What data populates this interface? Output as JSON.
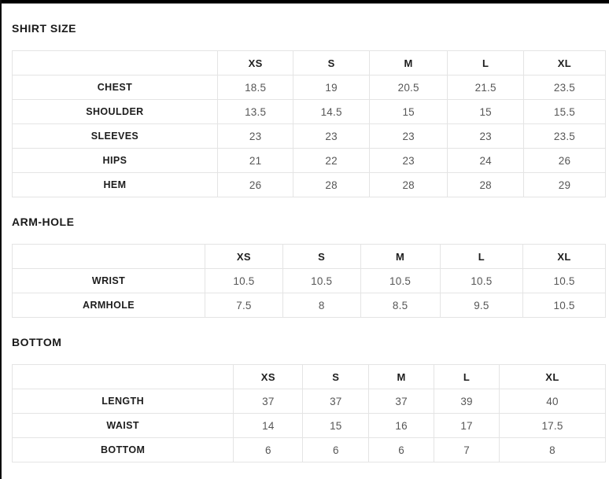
{
  "colors": {
    "frame": "#000000",
    "title_text": "#1a1a1a",
    "header_text": "#1d1d1d",
    "value_text": "#575757",
    "table_border": "#e4e4e4",
    "background": "#ffffff"
  },
  "sections": [
    {
      "title": "SHIRT SIZE",
      "columns": [
        "",
        "XS",
        "S",
        "M",
        "L",
        "XL"
      ],
      "rows": [
        {
          "label": "CHEST",
          "values": [
            "18.5",
            "19",
            "20.5",
            "21.5",
            "23.5"
          ]
        },
        {
          "label": "SHOULDER",
          "values": [
            "13.5",
            "14.5",
            "15",
            "15",
            "15.5"
          ]
        },
        {
          "label": "SLEEVES",
          "values": [
            "23",
            "23",
            "23",
            "23",
            "23.5"
          ]
        },
        {
          "label": "HIPS",
          "values": [
            "21",
            "22",
            "23",
            "24",
            "26"
          ]
        },
        {
          "label": "HEM",
          "values": [
            "26",
            "28",
            "28",
            "28",
            "29"
          ]
        }
      ]
    },
    {
      "title": "ARM-HOLE",
      "columns": [
        "",
        "XS",
        "S",
        "M",
        "L",
        "XL"
      ],
      "rows": [
        {
          "label": "WRIST",
          "values": [
            "10.5",
            "10.5",
            "10.5",
            "10.5",
            "10.5"
          ]
        },
        {
          "label": "ARMHOLE",
          "values": [
            "7.5",
            "8",
            "8.5",
            "9.5",
            "10.5"
          ]
        }
      ]
    },
    {
      "title": "BOTTOM",
      "columns": [
        "",
        "XS",
        "S",
        "M",
        "L",
        "XL"
      ],
      "rows": [
        {
          "label": "LENGTH",
          "values": [
            "37",
            "37",
            "37",
            "39",
            "40"
          ]
        },
        {
          "label": "WAIST",
          "values": [
            "14",
            "15",
            "16",
            "17",
            "17.5"
          ]
        },
        {
          "label": "BOTTOM",
          "values": [
            "6",
            "6",
            "6",
            "7",
            "8"
          ]
        }
      ]
    }
  ]
}
